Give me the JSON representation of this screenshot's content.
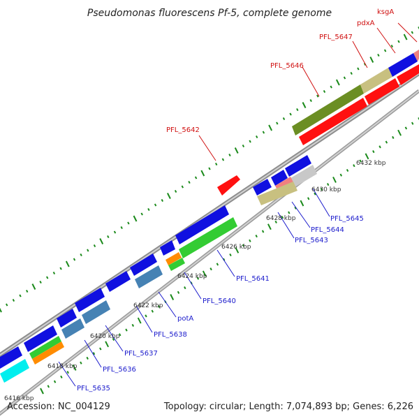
{
  "title": "Pseudomonas fluorescens Pf-5, complete genome",
  "footer": {
    "accession": "Accession: NC_004129",
    "summary": "Topology: circular; Length: 7,074,893 bp; Genes: 6,226"
  },
  "colors": {
    "blue": "#1010e0",
    "red": "#ff1010",
    "olive": "#6b8e23",
    "khaki": "#c8c080",
    "green": "#33cc33",
    "steelblue": "#4682b4",
    "orange": "#ff8c00",
    "cyan": "#00eeee",
    "pink": "#f08080",
    "gray": "#c8c8c8",
    "tick_green": "#1b8a1b",
    "label_red": "#d01010",
    "label_blue": "#1a1acc"
  },
  "scale_labels": [
    "6416 kbp",
    "6418 kbp",
    "6420 kbp",
    "6422 kbp",
    "6424 kbp",
    "6426 kbp",
    "6428 kbp",
    "6430 kbp",
    "6432 kbp"
  ],
  "genes_forward": [
    {
      "label": "PFL_5646",
      "color": "olive"
    },
    {
      "label": "PFL_5647",
      "color": "khaki"
    },
    {
      "label": "pdxA",
      "color": "blue"
    },
    {
      "label": "ksgA",
      "color": "pink"
    }
  ],
  "genes_forward_lower": [
    {
      "label": "PFL_5646",
      "color": "red"
    },
    {
      "label": "PFL_5647",
      "color": "red"
    },
    {
      "label": "pdxA",
      "color": "red"
    }
  ],
  "genes_reverse_labels": [
    "PFL_5642"
  ],
  "genes_reverse": [
    {
      "label": "PFL_5635",
      "color": "blue"
    },
    {
      "label": "PFL_5636",
      "color": "blue"
    },
    {
      "label": "PFL_5637",
      "color": "blue"
    },
    {
      "label": "PFL_5638",
      "color": "blue"
    },
    {
      "label": "potA",
      "color": "blue"
    },
    {
      "label": "PFL_5640",
      "color": "blue"
    },
    {
      "label": "PFL_5641",
      "color": "blue"
    },
    {
      "label": "PFL_5643",
      "color": "blue"
    },
    {
      "label": "PFL_5644",
      "color": "blue"
    },
    {
      "label": "PFL_5645",
      "color": "blue"
    }
  ]
}
